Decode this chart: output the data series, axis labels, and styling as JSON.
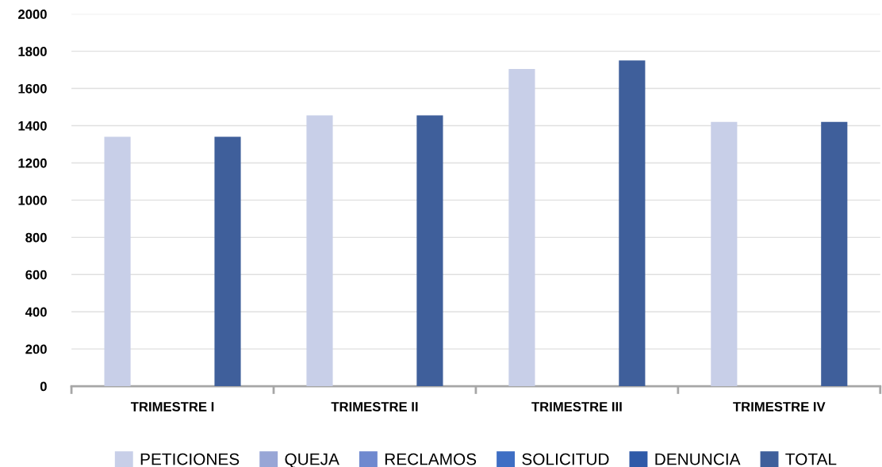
{
  "chart_data": {
    "type": "bar",
    "categories": [
      "TRIMESTRE I",
      "TRIMESTRE II",
      "TRIMESTRE III",
      "TRIMESTRE IV"
    ],
    "series": [
      {
        "name": "PETICIONES",
        "color": "#c8cfe8",
        "values": [
          1340,
          1455,
          1705,
          1420
        ]
      },
      {
        "name": "QUEJA",
        "color": "#98a6d6",
        "values": [
          0,
          0,
          0,
          0
        ]
      },
      {
        "name": "RECLAMOS",
        "color": "#6f89cf",
        "values": [
          0,
          0,
          0,
          0
        ]
      },
      {
        "name": "SOLICITUD",
        "color": "#3e6ec4",
        "values": [
          0,
          0,
          0,
          0
        ]
      },
      {
        "name": "DENUNCIA",
        "color": "#2f5aa8",
        "values": [
          0,
          0,
          0,
          0
        ]
      },
      {
        "name": "TOTAL",
        "color": "#3f5f9b",
        "values": [
          1340,
          1455,
          1750,
          1420
        ]
      }
    ],
    "ylim": [
      0,
      2000
    ],
    "yticks": [
      0,
      200,
      400,
      600,
      800,
      1000,
      1200,
      1400,
      1600,
      1800,
      2000
    ],
    "grid": "y",
    "legend": "bottom"
  }
}
